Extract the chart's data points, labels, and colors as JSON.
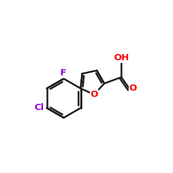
{
  "background_color": "#ffffff",
  "bond_color": "#1a1a1a",
  "O_color": "#ff0000",
  "F_color": "#9400d3",
  "Cl_color": "#9400d3",
  "bond_width": 1.8,
  "figsize": [
    2.5,
    2.5
  ],
  "dpi": 100,
  "xlim": [
    -1.5,
    1.1
  ],
  "ylim": [
    -1.0,
    0.8
  ]
}
